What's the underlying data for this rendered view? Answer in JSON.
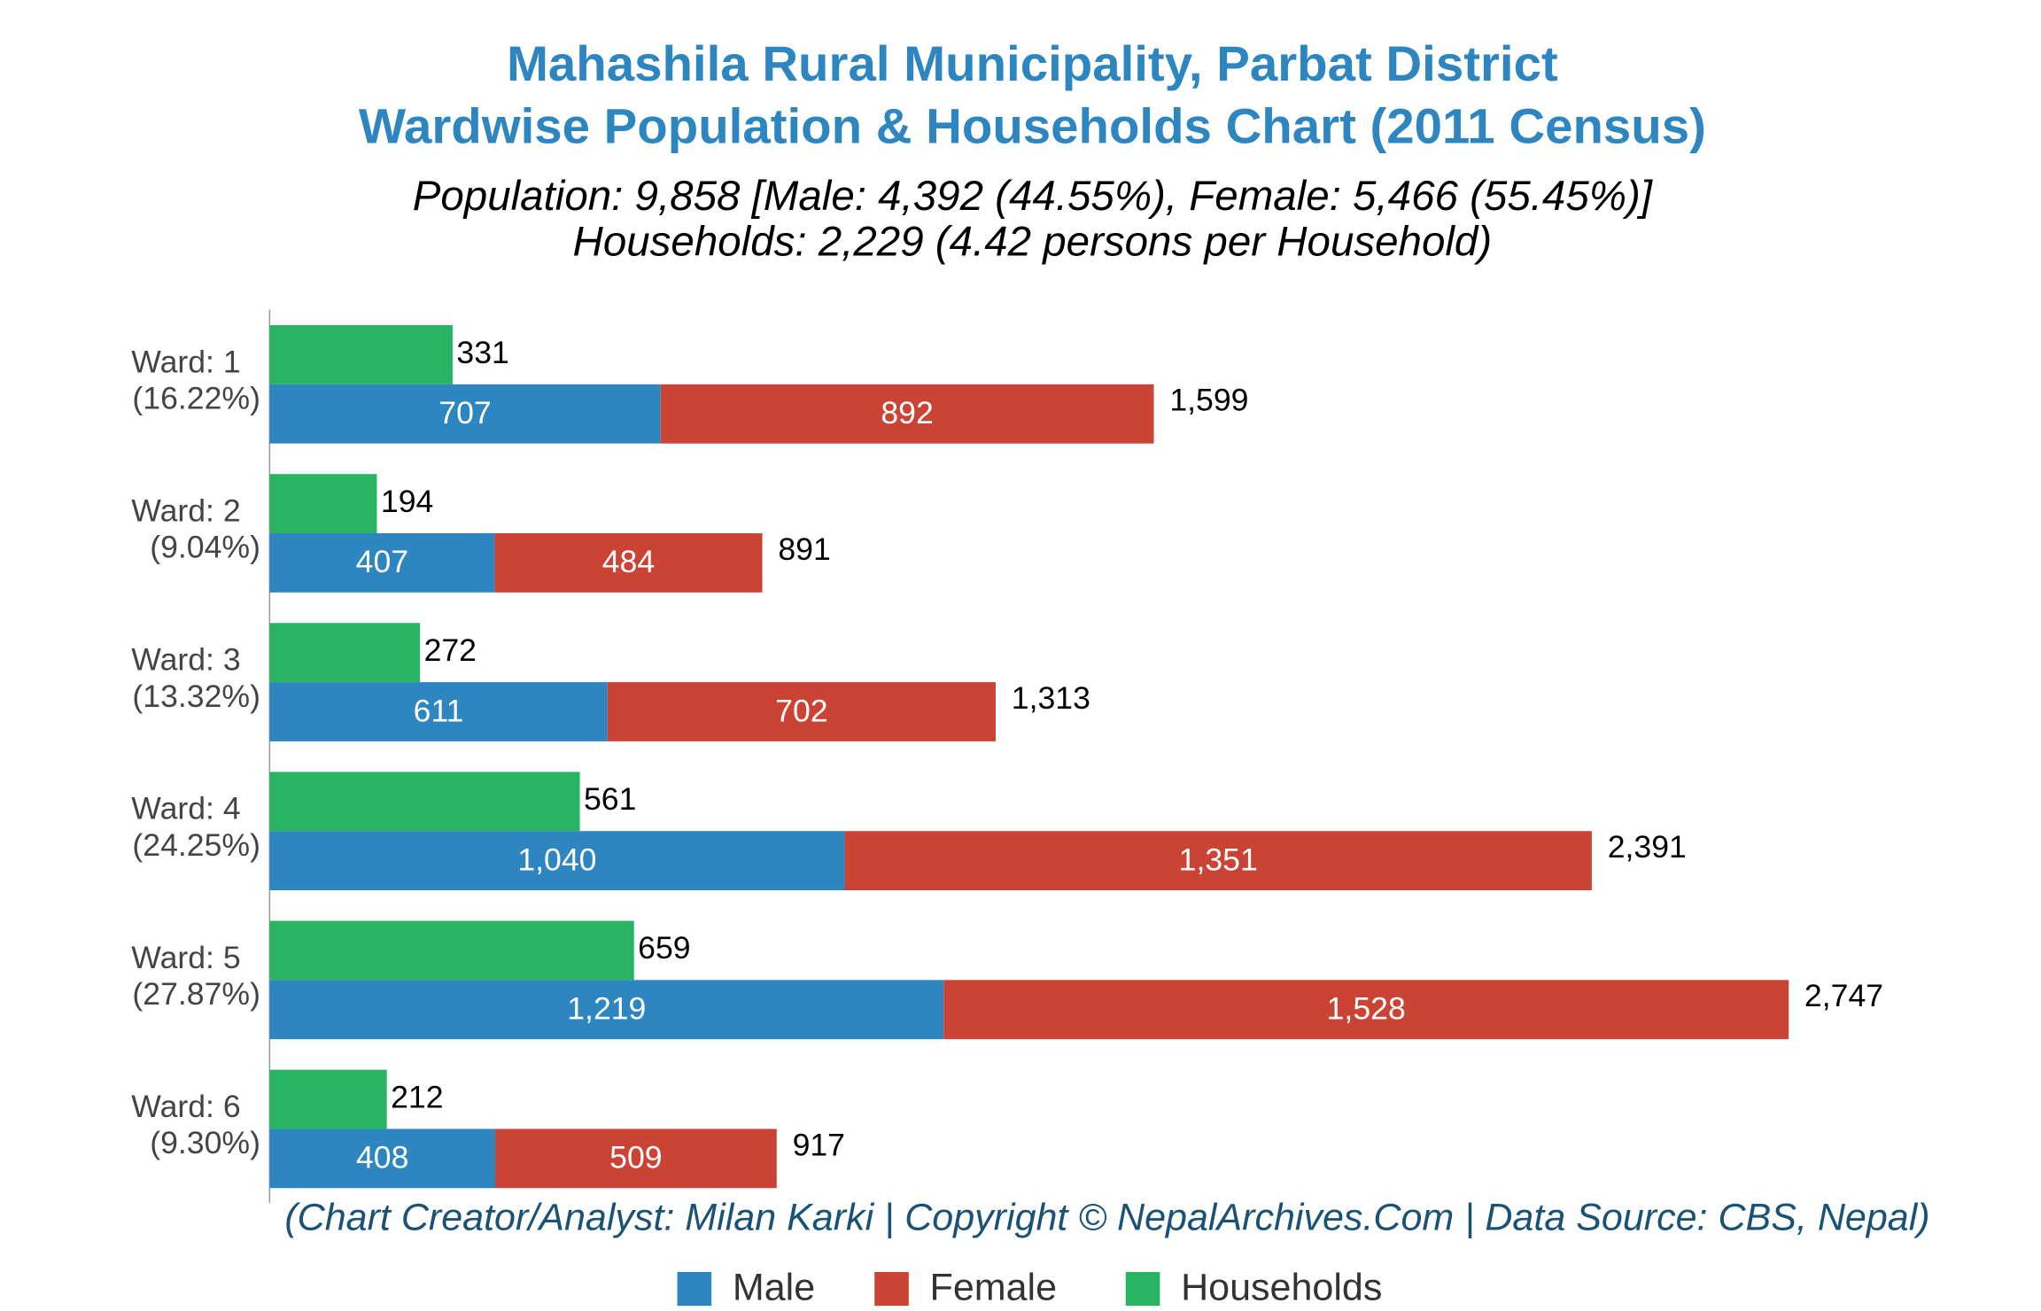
{
  "chart_data": {
    "type": "bar",
    "title": "Mahashila Rural Municipality, Parbat District",
    "title_line2": "Wardwise Population & Households Chart (2011 Census)",
    "subtitle": "Population: 9,858 [Male: 4,392 (44.55%), Female: 5,466 (55.45%)]",
    "subtitle_line2": "Households: 2,229 (4.42 persons per Household)",
    "footnote": "(Chart Creator/Analyst: Milan Karki | Copyright © NepalArchives.Com | Data Source: CBS, Nepal)",
    "categories": [
      "Ward: 1",
      "Ward: 2",
      "Ward: 3",
      "Ward: 4",
      "Ward: 5",
      "Ward: 6"
    ],
    "category_shares": [
      "(16.22%)",
      "(9.04%)",
      "(13.32%)",
      "(24.25%)",
      "(27.87%)",
      "(9.30%)"
    ],
    "series": [
      {
        "name": "Male",
        "color": "#2e86c1",
        "stack": "population",
        "values": [
          707,
          407,
          611,
          1040,
          1219,
          408
        ],
        "value_labels": [
          "707",
          "407",
          "611",
          "1,040",
          "1,219",
          "408"
        ]
      },
      {
        "name": "Female",
        "color": "#cb4335",
        "stack": "population",
        "values": [
          892,
          484,
          702,
          1351,
          1528,
          509
        ],
        "value_labels": [
          "892",
          "484",
          "702",
          "1,351",
          "1,528",
          "509"
        ]
      },
      {
        "name": "Households",
        "color": "#28b463",
        "stack": "households",
        "values": [
          331,
          194,
          272,
          561,
          659,
          212
        ]
      }
    ],
    "totals": [
      1599,
      891,
      1313,
      2391,
      2747,
      917
    ],
    "total_labels": [
      "1,599",
      "891",
      "1,313",
      "2,391",
      "2,747",
      "917"
    ],
    "xlim": [
      0,
      3000
    ],
    "orientation": "horizontal",
    "legend": "bottom"
  }
}
